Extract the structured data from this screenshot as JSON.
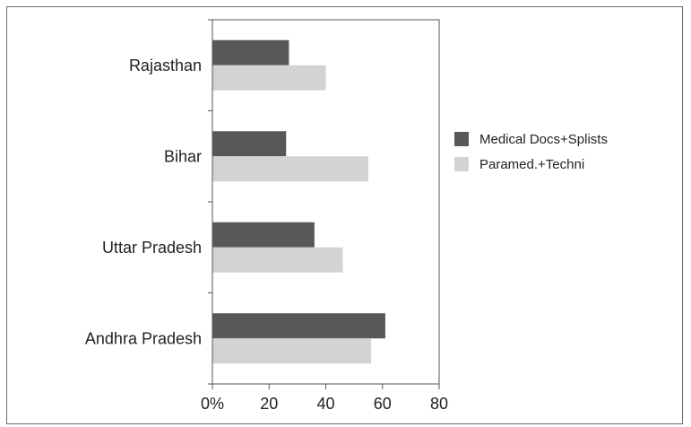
{
  "chart_data": {
    "type": "bar",
    "orientation": "horizontal",
    "categories": [
      "Rajasthan",
      "Bihar",
      "Uttar Pradesh",
      "Andhra Pradesh"
    ],
    "series": [
      {
        "name": "Medical Docs+Splists",
        "color": "#585858",
        "values": [
          27,
          26,
          36,
          61
        ]
      },
      {
        "name": "Paramed.+Techni",
        "color": "#d3d3d3",
        "values": [
          40,
          55,
          46,
          56
        ]
      }
    ],
    "xlim": [
      0,
      80
    ],
    "x_ticks": [
      0,
      20,
      40,
      60,
      80
    ],
    "x_tick_labels": [
      "0%",
      "20",
      "40",
      "60",
      "80"
    ],
    "grid": false,
    "legend_position": "right"
  }
}
